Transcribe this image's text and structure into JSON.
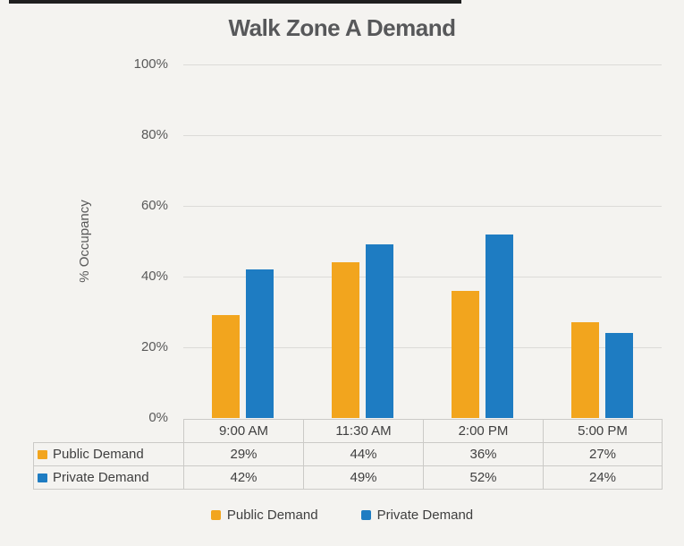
{
  "title": "Walk Zone A Demand",
  "colors": {
    "public_demand": "#F2A51E",
    "private_demand": "#1E7CC2",
    "title_text": "#57585A",
    "axis_text": "#595959",
    "table_text": "#3F3F3F",
    "gridline": "#DCDBD8",
    "table_border": "#CBCAC7",
    "background": "#F4F3F0",
    "top_line": "#1F1F1F"
  },
  "chart_data": {
    "type": "bar",
    "title": "Walk Zone A Demand",
    "categories": [
      "9:00 AM",
      "11:30 AM",
      "2:00 PM",
      "5:00 PM"
    ],
    "series": [
      {
        "name": "Public Demand",
        "values": [
          29,
          44,
          36,
          27
        ],
        "color": "#F2A51E"
      },
      {
        "name": "Private Demand",
        "values": [
          42,
          49,
          52,
          24
        ],
        "color": "#1E7CC2"
      }
    ],
    "xlabel": "",
    "ylabel": "% Occupancy",
    "ylim": [
      0,
      100
    ],
    "ytick_step": 20,
    "ytick_labels": [
      "100%",
      "80%",
      "60%",
      "40%",
      "20%",
      "0%"
    ],
    "grid": true,
    "legend_position": "bottom",
    "data_table_shown": true
  },
  "table": {
    "rows": [
      {
        "label": "Public Demand",
        "values": [
          "29%",
          "44%",
          "36%",
          "27%"
        ]
      },
      {
        "label": "Private Demand",
        "values": [
          "42%",
          "49%",
          "52%",
          "24%"
        ]
      }
    ]
  },
  "legend": {
    "items": [
      {
        "label": "Public Demand"
      },
      {
        "label": "Private Demand"
      }
    ]
  }
}
